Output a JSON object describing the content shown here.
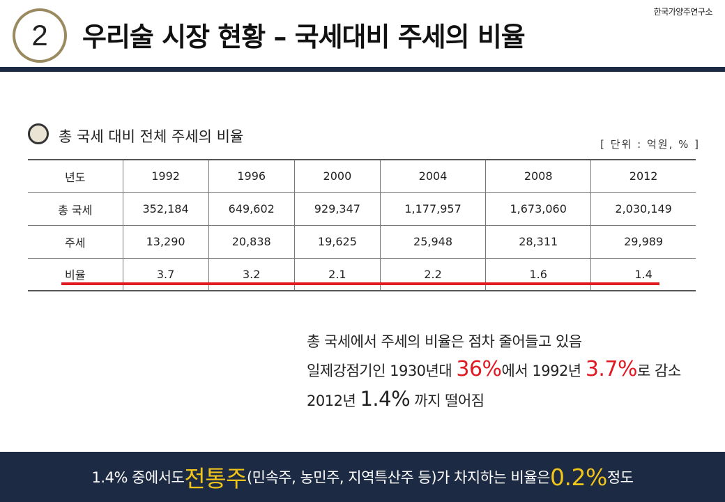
{
  "brand": "한국가양주연구소",
  "section_number": "2",
  "title": "우리술 시장 현황 – 국세대비 주세의 비율",
  "subtitle": "총 국세 대비 전체 주세의 비율",
  "unit": "[ 단위 : 억원, % ]",
  "table": {
    "header": [
      "년도",
      "1992",
      "1996",
      "2000",
      "2004",
      "2008",
      "2012"
    ],
    "rows": [
      [
        "총 국세",
        "352,184",
        "649,602",
        "929,347",
        "1,177,957",
        "1,673,060",
        "2,030,149"
      ],
      [
        "주세",
        "13,290",
        "20,838",
        "19,625",
        "25,948",
        "28,311",
        "29,989"
      ],
      [
        "비율",
        "3.7",
        "3.2",
        "2.1",
        "2.2",
        "1.6",
        "1.4"
      ]
    ]
  },
  "summary": {
    "line1": "총 국세에서 주세의 비율은 점차 줄어들고 있음",
    "line2_a": "일제강점기인 1930년대 ",
    "line2_hl1": "36%",
    "line2_b": "에서 1992년 ",
    "line2_hl2": "3.7%",
    "line2_c": "로 감소",
    "line3_a": "2012년 ",
    "line3_big": "1.4%",
    "line3_b": " 까지 떨어짐"
  },
  "footer": {
    "a": "1.4% 중에서도 ",
    "highlight1": "전통주",
    "b": "(민속주, 농민주, 지역특산주 등)가 차지하는 비율은 ",
    "highlight2": "0.2%",
    "c": " 정도"
  },
  "colors": {
    "navy": "#1c2a44",
    "red": "#e01a22",
    "gold": "#f0c419",
    "badge_ring": "#9a8a60"
  }
}
